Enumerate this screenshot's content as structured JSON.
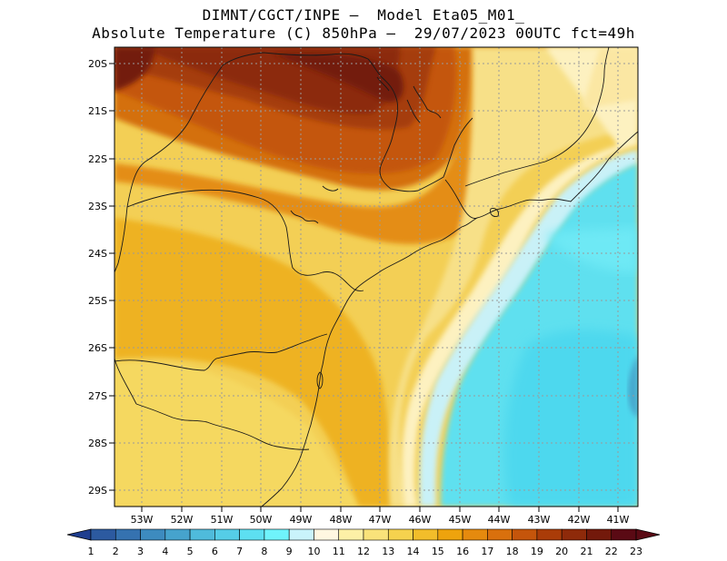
{
  "title": {
    "line1": "DIMNT/CGCT/INPE –  Model Eta05_M01_",
    "line2": "Absolute Temperature (C) 850hPa –  29/07/2023 00UTC fct=49h"
  },
  "map": {
    "lat_labels": [
      "20S",
      "21S",
      "22S",
      "23S",
      "24S",
      "25S",
      "26S",
      "27S",
      "28S",
      "29S"
    ],
    "lon_labels": [
      "53W",
      "52W",
      "51W",
      "50W",
      "49W",
      "48W",
      "47W",
      "46W",
      "45W",
      "44W",
      "43W",
      "42W",
      "41W"
    ],
    "lat_range": [
      -29.4,
      -19.8
    ],
    "lon_range": [
      -53.7,
      -40.5
    ],
    "field": "temperature_850hPa",
    "unit": "C",
    "features": [
      "coastline",
      "state-borders",
      "lat-lon-grid"
    ]
  },
  "colorbar": {
    "labels": [
      "1",
      "2",
      "3",
      "4",
      "5",
      "6",
      "7",
      "8",
      "9",
      "10",
      "11",
      "12",
      "13",
      "14",
      "15",
      "16",
      "17",
      "18",
      "19",
      "20",
      "21",
      "22",
      "23"
    ],
    "colors": [
      "#1f3e8f",
      "#2c5aa0",
      "#3572b0",
      "#3d8bbf",
      "#46a3cd",
      "#4fbbdb",
      "#55cde7",
      "#5ddff1",
      "#6ff3fb",
      "#c9f3fb",
      "#fff7e1",
      "#fdf0a6",
      "#f9e27a",
      "#f5d24e",
      "#f2bd2a",
      "#eea30d",
      "#e58a0e",
      "#d9700d",
      "#c5550b",
      "#aa3c08",
      "#8e2a0a",
      "#73190b",
      "#5a0a14"
    ]
  }
}
